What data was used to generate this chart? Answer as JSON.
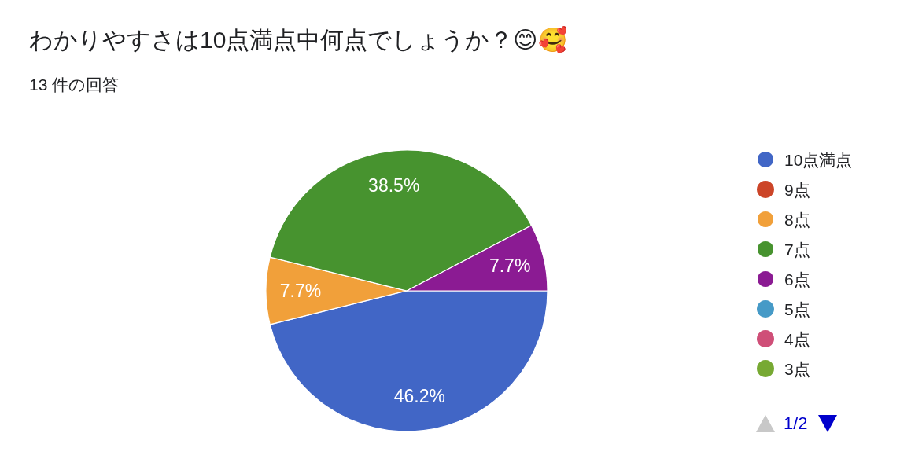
{
  "chart_data": {
    "type": "pie",
    "title": "わかりやすさは10点満点中何点でしょうか？😊🥰",
    "subtitle": "13 件の回答",
    "categories": [
      "10点満点",
      "9点",
      "8点",
      "7点",
      "6点",
      "5点",
      "4点",
      "3点"
    ],
    "values": [
      46.2,
      0,
      7.7,
      38.5,
      7.7,
      0,
      0,
      0
    ],
    "colors": [
      "#4166c6",
      "#cc4528",
      "#f1a03a",
      "#47932f",
      "#8b1b93",
      "#469ac7",
      "#cf4f78",
      "#77a933"
    ],
    "value_labels": [
      "46.2%",
      null,
      "7.7%",
      "38.5%",
      "7.7%",
      null,
      null,
      null
    ],
    "legend": "right",
    "annotations": [
      "1/2"
    ]
  }
}
